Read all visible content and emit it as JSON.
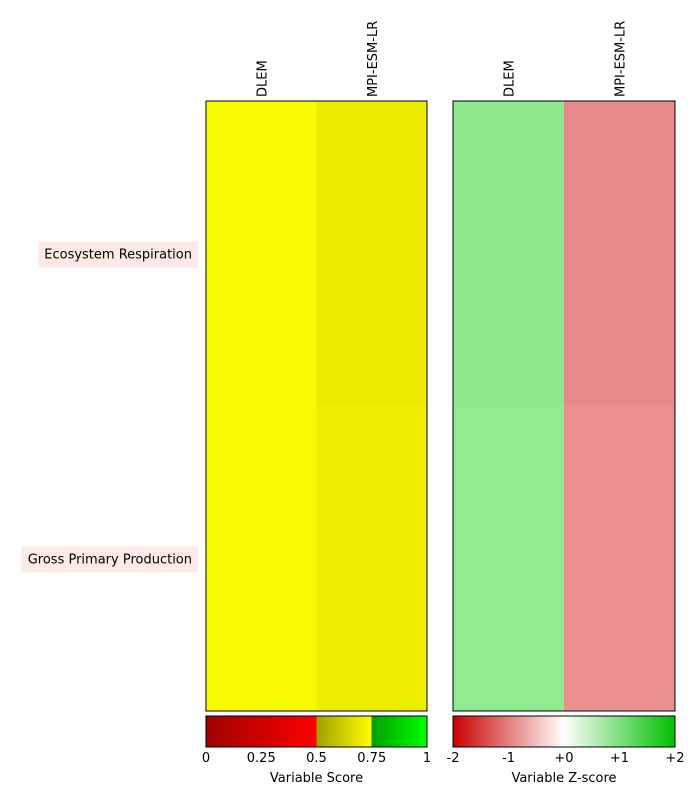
{
  "chart_data": [
    {
      "type": "heatmap",
      "title": "",
      "rows": [
        "Ecosystem Respiration",
        "Gross Primary Production"
      ],
      "columns": [
        "DLEM",
        "MPI-ESM-LR"
      ],
      "values": [
        [
          0.69,
          0.66
        ],
        [
          0.69,
          0.67
        ]
      ],
      "cell_colors": [
        [
          "#f9f900",
          "#ebeb00"
        ],
        [
          "#f9f900",
          "#eeee00"
        ]
      ],
      "colorbar": {
        "label": "Variable Score",
        "range": [
          0,
          1
        ],
        "ticks": [
          "0",
          "0.25",
          "0.5",
          "0.75",
          "1"
        ],
        "tick_values": [
          0,
          0.25,
          0.5,
          0.75,
          1
        ]
      }
    },
    {
      "type": "heatmap",
      "title": "",
      "rows": [
        "Ecosystem Respiration",
        "Gross Primary Production"
      ],
      "columns": [
        "DLEM",
        "MPI-ESM-LR"
      ],
      "values": [
        [
          0.6,
          -0.7
        ],
        [
          0.6,
          -0.65
        ]
      ],
      "cell_colors": [
        [
          "#8ee98e",
          "#e68a8a"
        ],
        [
          "#90ea90",
          "#e89090"
        ]
      ],
      "colorbar": {
        "label": "Variable Z-score",
        "range": [
          -2,
          2
        ],
        "ticks": [
          "-2",
          "-1",
          "+0",
          "+1",
          "+2"
        ],
        "tick_values": [
          -2,
          -1,
          0,
          1,
          2
        ]
      }
    }
  ],
  "colors": {
    "row_label_bg": "#fde9e5"
  }
}
